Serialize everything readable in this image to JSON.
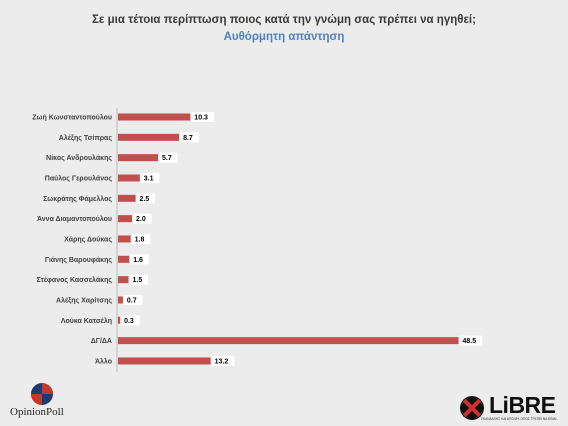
{
  "chart_data": {
    "type": "bar",
    "orientation": "horizontal",
    "title": "Σε μια τέτοια περίπτωση ποιος κατά την γνώμη σας πρέπει να ηγηθεί;",
    "subtitle": "Αυθόρμητη απάντηση",
    "categories": [
      "Ζωή Κωνσταντοπούλου",
      "Αλέξης Τσίπρας",
      "Νίκος Ανδρουλάκης",
      "Παύλος Γερουλάνος",
      "Σωκράτης Φάμελλος",
      "Άννα Διαμαντοπούλου",
      "Χάρης Δούκας",
      "Γιάνης Βαρουφάκης",
      "Στέφανος Κασσελάκης",
      "Αλέξης Χαρίτσης",
      "Λούκα Κατσέλη",
      "ΔΓ/ΔΑ",
      "Άλλο"
    ],
    "values": [
      10.3,
      8.7,
      5.7,
      3.1,
      2.5,
      2.0,
      1.8,
      1.6,
      1.5,
      0.7,
      0.3,
      48.5,
      13.2
    ],
    "value_labels": [
      "10.3",
      "8.7",
      "5.7",
      "3.1",
      "2.5",
      "2.0",
      "1.8",
      "1.6",
      "1.5",
      "0.7",
      "0.3",
      "48.5",
      "13.2"
    ],
    "xlim": [
      0,
      52
    ],
    "grid": false,
    "bar_color": "#c0504d"
  },
  "branding": {
    "left_logo_text": "OpinionPoll",
    "right_logo_text": "LiBRE",
    "right_logo_tagline": "ΣΚΑΝΔΑΛΗΣ ΚΑΙ ΑΠΟΨΗ. ΟΠΩΣ ΤΡΕΠΕΙ ΝΑ ΕΙΝΑΙ."
  },
  "colors": {
    "background": "#ececec",
    "title": "#3a3a3a",
    "subtitle": "#4f81bd",
    "accent_red": "#c0504d"
  }
}
